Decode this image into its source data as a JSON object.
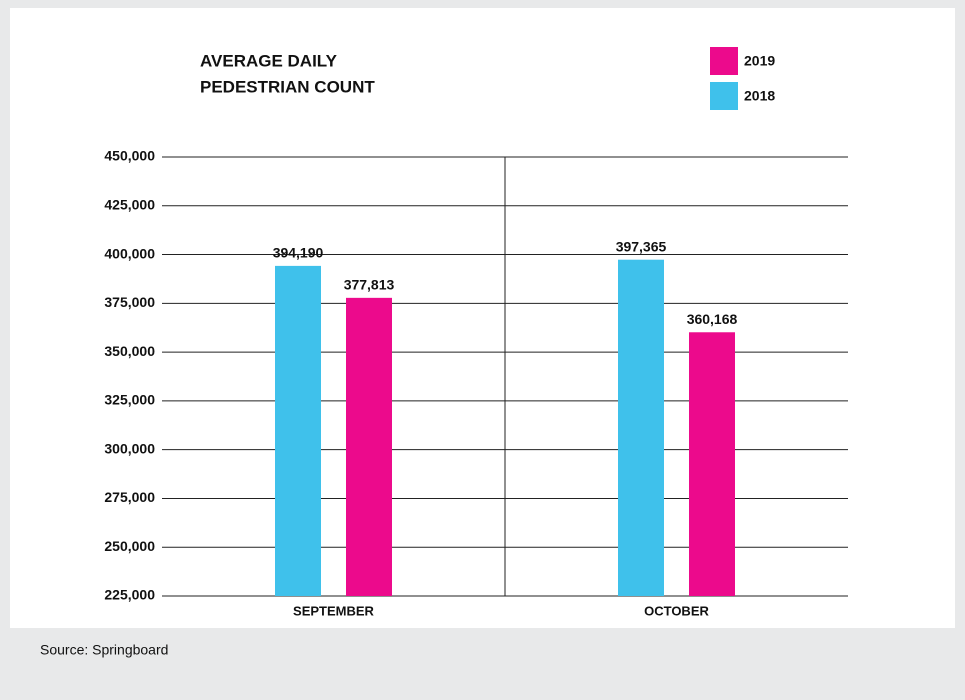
{
  "chart_data": {
    "type": "bar",
    "title": [
      "AVERAGE DAILY",
      "PEDESTRIAN COUNT"
    ],
    "categories": [
      "SEPTEMBER",
      "OCTOBER"
    ],
    "series": [
      {
        "name": "2019",
        "color": "#ec0a8c",
        "values": [
          377813,
          360168
        ],
        "value_labels": [
          "377,813",
          "360,168"
        ]
      },
      {
        "name": "2018",
        "color": "#3fc1eb",
        "values": [
          394190,
          397365
        ],
        "value_labels": [
          "394,190",
          "397,365"
        ]
      }
    ],
    "ylim": [
      225000,
      450000
    ],
    "yticks": [
      {
        "value": 225000,
        "label": "225,000"
      },
      {
        "value": 250000,
        "label": "250,000"
      },
      {
        "value": 275000,
        "label": "275,000"
      },
      {
        "value": 300000,
        "label": "300,000"
      },
      {
        "value": 325000,
        "label": "325,000"
      },
      {
        "value": 350000,
        "label": "350,000"
      },
      {
        "value": 375000,
        "label": "375,000"
      },
      {
        "value": 400000,
        "label": "400,000"
      },
      {
        "value": 425000,
        "label": "425,000"
      },
      {
        "value": 450000,
        "label": "450,000"
      }
    ],
    "grid": true,
    "legend": "upper right",
    "source": "Source: Springboard"
  }
}
